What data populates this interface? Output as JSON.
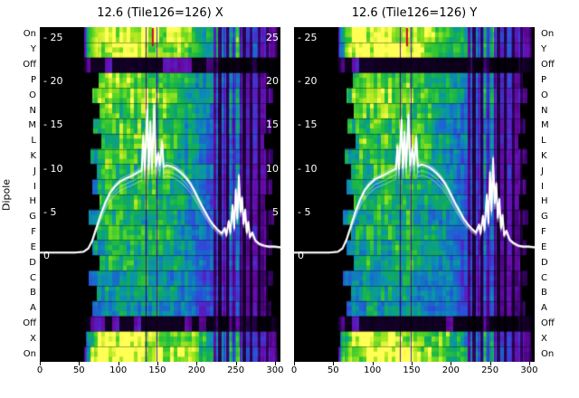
{
  "figure": {
    "ylabel": "Dipole",
    "background": "#ffffff",
    "panels": [
      {
        "title": "12.6 (Tile126=126) X"
      },
      {
        "title": "12.6 (Tile126=126) Y"
      }
    ],
    "dipole_labels": [
      "On",
      "Y",
      "Off",
      "P",
      "O",
      "N",
      "M",
      "L",
      "K",
      "J",
      "I",
      "H",
      "G",
      "F",
      "E",
      "D",
      "C",
      "B",
      "A",
      "Off",
      "X",
      "On"
    ],
    "x_tick_labels": [
      "0",
      "50",
      "100",
      "150",
      "200",
      "250",
      "300"
    ],
    "inner_y_tick_labels_left": [
      "- 25",
      "- 20",
      "- 15",
      "- 10",
      "- 5",
      "0"
    ],
    "inner_y_tick_values": [
      25,
      20,
      15,
      10,
      5,
      0
    ],
    "inner_y_tick_labels_right": [
      "25",
      "20",
      "15",
      "10",
      "5"
    ],
    "inner_y_tick_values_right": [
      25,
      20,
      15,
      10,
      5
    ]
  },
  "chart_data": {
    "type": "heatmap",
    "title_left": "12.6 (Tile126=126) X",
    "title_right": "12.6 (Tile126=126) Y",
    "x_range": [
      0,
      307
    ],
    "x_ticks": [
      0,
      50,
      100,
      150,
      200,
      250,
      300
    ],
    "value_axis_ticks": [
      0,
      5,
      10,
      15,
      20,
      25
    ],
    "line_color": "#ffffff",
    "colormap": [
      "#000000",
      "#16002e",
      "#3d0470",
      "#6a0aa8",
      "#5026c8",
      "#2b4fd8",
      "#1473c8",
      "#0b96a8",
      "#0faa60",
      "#27c13a",
      "#66d824",
      "#b9e921",
      "#ffff55"
    ],
    "bandpass": [
      [
        0,
        0
      ],
      [
        54,
        0
      ],
      [
        57,
        0.3
      ],
      [
        60,
        0.62
      ],
      [
        66,
        0.8
      ],
      [
        74,
        0.92
      ],
      [
        88,
        1.0
      ],
      [
        126,
        1.0
      ],
      [
        150,
        0.97
      ],
      [
        170,
        0.9
      ],
      [
        195,
        0.78
      ],
      [
        215,
        0.65
      ],
      [
        232,
        0.55
      ],
      [
        248,
        0.5
      ],
      [
        262,
        0.42
      ],
      [
        275,
        0.37
      ],
      [
        288,
        0.33
      ],
      [
        297,
        0.28
      ],
      [
        302,
        0.12
      ],
      [
        305,
        0
      ],
      [
        307,
        0
      ]
    ],
    "stripes": [
      {
        "x": 135,
        "w": 2,
        "m": 0.3
      },
      {
        "x": 149,
        "w": 2,
        "m": 0.35
      },
      {
        "x": 223,
        "w": 3,
        "m": 0.45
      },
      {
        "x": 229,
        "w": 4,
        "m": 0.25
      },
      {
        "x": 235,
        "w": 3,
        "m": 0.7
      },
      {
        "x": 239,
        "w": 3,
        "m": 0.3
      },
      {
        "x": 243,
        "w": 3,
        "m": 1.45
      },
      {
        "x": 247,
        "w": 2,
        "m": 0.5
      },
      {
        "x": 252,
        "w": 4,
        "m": 1.5
      },
      {
        "x": 256,
        "w": 2,
        "m": 0.6
      },
      {
        "x": 260,
        "w": 4,
        "m": 0.3
      },
      {
        "x": 265,
        "w": 3,
        "m": 0.85
      },
      {
        "x": 269,
        "w": 3,
        "m": 0.35
      },
      {
        "x": 274,
        "w": 4,
        "m": 1.15
      },
      {
        "x": 279,
        "w": 3,
        "m": 0.4
      },
      {
        "x": 284,
        "w": 4,
        "m": 0.9
      },
      {
        "x": 290,
        "w": 3,
        "m": 0.45
      },
      {
        "x": 295,
        "w": 4,
        "m": 0.8
      }
    ],
    "rows": [
      {
        "label": "On",
        "gain": 1.0,
        "x_start": 56,
        "x_end": 303
      },
      {
        "label": "Y",
        "gain": 1.0,
        "x_start": 56,
        "x_end": 303
      },
      {
        "label": "Off",
        "gain": 0.13,
        "x_start": 50,
        "x_end": 305
      },
      {
        "label": "P",
        "gain": 0.82,
        "x_start": 74,
        "x_end": 291
      },
      {
        "label": "O",
        "gain": 0.86,
        "x_start": 66,
        "x_end": 297
      },
      {
        "label": "N",
        "gain": 0.8,
        "x_start": 76,
        "x_end": 288
      },
      {
        "label": "M",
        "gain": 0.76,
        "x_start": 68,
        "x_end": 295
      },
      {
        "label": "L",
        "gain": 0.78,
        "x_start": 78,
        "x_end": 286
      },
      {
        "label": "K",
        "gain": 0.73,
        "x_start": 64,
        "x_end": 297
      },
      {
        "label": "J",
        "gain": 0.75,
        "x_start": 72,
        "x_end": 290
      },
      {
        "label": "I",
        "gain": 0.7,
        "x_start": 66,
        "x_end": 296
      },
      {
        "label": "H",
        "gain": 0.72,
        "x_start": 76,
        "x_end": 287
      },
      {
        "label": "G",
        "gain": 0.68,
        "x_start": 62,
        "x_end": 298
      },
      {
        "label": "F",
        "gain": 0.7,
        "x_start": 72,
        "x_end": 291
      },
      {
        "label": "E",
        "gain": 0.66,
        "x_start": 66,
        "x_end": 296
      },
      {
        "label": "D",
        "gain": 0.68,
        "x_start": 76,
        "x_end": 288
      },
      {
        "label": "C",
        "gain": 0.61,
        "x_start": 62,
        "x_end": 297
      },
      {
        "label": "B",
        "gain": 0.63,
        "x_start": 72,
        "x_end": 290
      },
      {
        "label": "A",
        "gain": 0.58,
        "x_start": 66,
        "x_end": 295
      },
      {
        "label": "Off",
        "gain": 0.13,
        "x_start": 50,
        "x_end": 305
      },
      {
        "label": "X",
        "gain": 0.96,
        "x_start": 58,
        "x_end": 302
      },
      {
        "label": "On",
        "gain": 1.0,
        "x_start": 56,
        "x_end": 303
      }
    ],
    "marker": {
      "x": 143,
      "color": "#d40030",
      "rows": 2
    },
    "series": [
      {
        "name": "X",
        "points": [
          [
            0,
            0.4
          ],
          [
            25,
            0.4
          ],
          [
            45,
            0.4
          ],
          [
            56,
            0.5
          ],
          [
            62,
            0.9
          ],
          [
            67,
            1.8
          ],
          [
            72,
            3.2
          ],
          [
            78,
            4.8
          ],
          [
            84,
            6.2
          ],
          [
            90,
            7.3
          ],
          [
            96,
            8.0
          ],
          [
            103,
            8.6
          ],
          [
            110,
            8.9
          ],
          [
            117,
            9.2
          ],
          [
            123,
            9.5
          ],
          [
            127,
            9.7
          ],
          [
            130,
            9.8
          ],
          [
            132,
            13.8
          ],
          [
            134,
            9.9
          ],
          [
            137,
            16.8
          ],
          [
            139,
            10.0
          ],
          [
            141,
            15.4
          ],
          [
            143,
            10.1
          ],
          [
            146,
            17.3
          ],
          [
            148,
            10.3
          ],
          [
            151,
            11.8
          ],
          [
            153,
            10.4
          ],
          [
            156,
            13.1
          ],
          [
            158,
            10.2
          ],
          [
            162,
            10.4
          ],
          [
            167,
            10.3
          ],
          [
            172,
            10.1
          ],
          [
            177,
            9.8
          ],
          [
            182,
            9.4
          ],
          [
            187,
            8.9
          ],
          [
            192,
            8.3
          ],
          [
            197,
            7.5
          ],
          [
            202,
            6.6
          ],
          [
            207,
            5.7
          ],
          [
            212,
            4.9
          ],
          [
            217,
            4.1
          ],
          [
            222,
            3.5
          ],
          [
            227,
            3.0
          ],
          [
            232,
            2.6
          ],
          [
            236,
            3.2
          ],
          [
            238,
            2.4
          ],
          [
            241,
            4.0
          ],
          [
            243,
            2.7
          ],
          [
            246,
            5.8
          ],
          [
            248,
            3.2
          ],
          [
            250,
            7.6
          ],
          [
            252,
            4.3
          ],
          [
            254,
            9.2
          ],
          [
            256,
            5.1
          ],
          [
            258,
            6.7
          ],
          [
            260,
            3.7
          ],
          [
            262,
            5.3
          ],
          [
            264,
            2.7
          ],
          [
            266,
            3.9
          ],
          [
            268,
            2.2
          ],
          [
            271,
            2.7
          ],
          [
            275,
            1.8
          ],
          [
            280,
            1.4
          ],
          [
            286,
            1.2
          ],
          [
            292,
            1.1
          ],
          [
            299,
            1.1
          ],
          [
            307,
            1.0
          ]
        ]
      },
      {
        "name": "Y",
        "points": [
          [
            0,
            0.4
          ],
          [
            25,
            0.4
          ],
          [
            45,
            0.4
          ],
          [
            56,
            0.5
          ],
          [
            62,
            0.9
          ],
          [
            67,
            1.9
          ],
          [
            72,
            3.3
          ],
          [
            78,
            5.0
          ],
          [
            84,
            6.4
          ],
          [
            90,
            7.5
          ],
          [
            96,
            8.2
          ],
          [
            103,
            8.8
          ],
          [
            110,
            9.1
          ],
          [
            117,
            9.4
          ],
          [
            123,
            9.7
          ],
          [
            127,
            9.9
          ],
          [
            130,
            10.0
          ],
          [
            132,
            12.6
          ],
          [
            134,
            10.0
          ],
          [
            137,
            15.6
          ],
          [
            139,
            10.1
          ],
          [
            141,
            14.2
          ],
          [
            143,
            10.2
          ],
          [
            146,
            16.2
          ],
          [
            148,
            10.4
          ],
          [
            151,
            12.4
          ],
          [
            153,
            10.5
          ],
          [
            156,
            13.6
          ],
          [
            158,
            10.3
          ],
          [
            162,
            10.5
          ],
          [
            167,
            10.4
          ],
          [
            172,
            10.2
          ],
          [
            177,
            9.9
          ],
          [
            182,
            9.5
          ],
          [
            187,
            9.0
          ],
          [
            192,
            8.4
          ],
          [
            197,
            7.6
          ],
          [
            202,
            6.7
          ],
          [
            207,
            5.8
          ],
          [
            212,
            5.0
          ],
          [
            217,
            4.2
          ],
          [
            222,
            3.6
          ],
          [
            227,
            3.1
          ],
          [
            232,
            2.7
          ],
          [
            236,
            3.6
          ],
          [
            238,
            2.6
          ],
          [
            241,
            4.6
          ],
          [
            243,
            3.0
          ],
          [
            246,
            7.0
          ],
          [
            248,
            3.8
          ],
          [
            250,
            9.6
          ],
          [
            252,
            5.2
          ],
          [
            254,
            11.2
          ],
          [
            256,
            6.1
          ],
          [
            258,
            8.3
          ],
          [
            260,
            4.4
          ],
          [
            262,
            6.5
          ],
          [
            264,
            3.2
          ],
          [
            266,
            4.7
          ],
          [
            268,
            2.4
          ],
          [
            271,
            2.9
          ],
          [
            275,
            1.9
          ],
          [
            280,
            1.5
          ],
          [
            286,
            1.2
          ],
          [
            292,
            1.1
          ],
          [
            299,
            1.1
          ],
          [
            307,
            1.0
          ]
        ]
      }
    ]
  }
}
